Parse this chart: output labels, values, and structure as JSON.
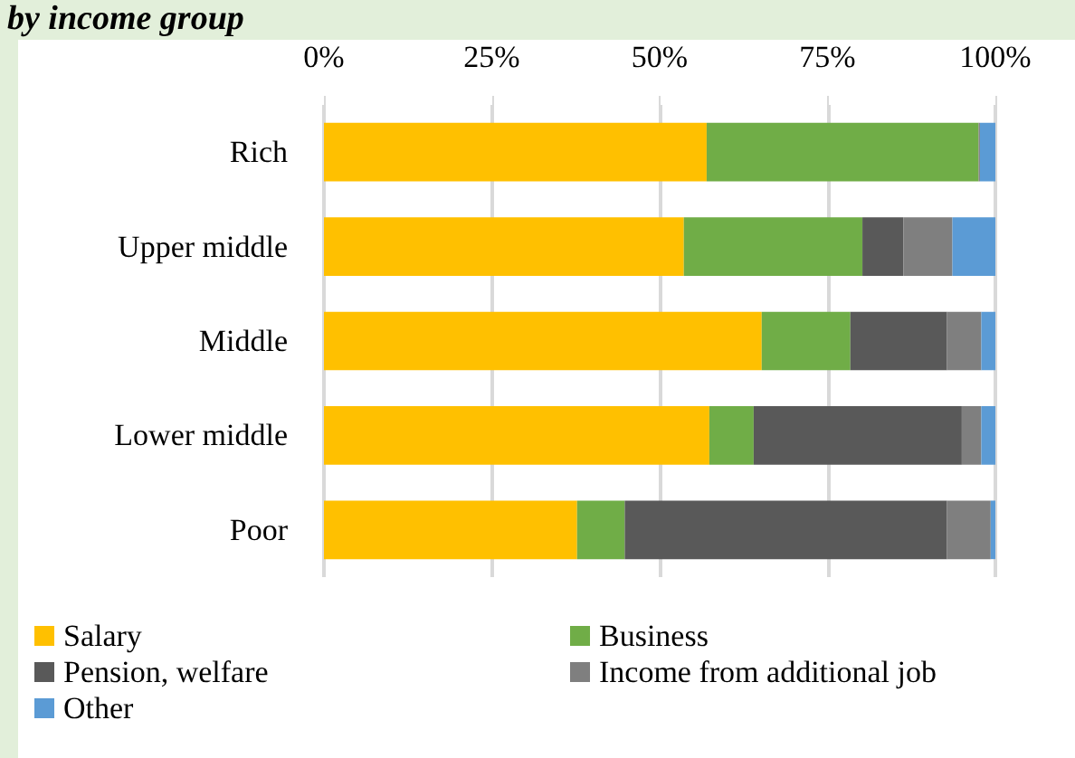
{
  "chart_data": {
    "type": "bar",
    "orientation": "horizontal",
    "stacked": true,
    "title": "by income group",
    "categories": [
      "Rich",
      "Upper middle",
      "Middle",
      "Lower middle",
      "Poor"
    ],
    "series": [
      {
        "name": "Salary",
        "color": "#ffc000",
        "values": [
          57.0,
          53.6,
          65.2,
          57.4,
          37.7
        ]
      },
      {
        "name": "Business",
        "color": "#70ad47",
        "values": [
          40.5,
          26.6,
          13.2,
          6.6,
          7.1
        ]
      },
      {
        "name": "Pension, welfare",
        "color": "#595959",
        "values": [
          0,
          6.1,
          14.4,
          31.0,
          48.0
        ]
      },
      {
        "name": "Income from additional job",
        "color": "#7f7f7f",
        "values": [
          0.2,
          7.3,
          5.1,
          2.9,
          6.5
        ]
      },
      {
        "name": "Other",
        "color": "#5b9bd5",
        "values": [
          2.3,
          6.4,
          2.1,
          2.1,
          0.7
        ]
      }
    ],
    "xlim": [
      0,
      100
    ],
    "xticks": [
      {
        "value": 0,
        "label": "0%"
      },
      {
        "value": 25,
        "label": "25%"
      },
      {
        "value": 50,
        "label": "50%"
      },
      {
        "value": 75,
        "label": "75%"
      },
      {
        "value": 100,
        "label": "100%"
      }
    ],
    "grid": "x",
    "legend": "bottom"
  }
}
